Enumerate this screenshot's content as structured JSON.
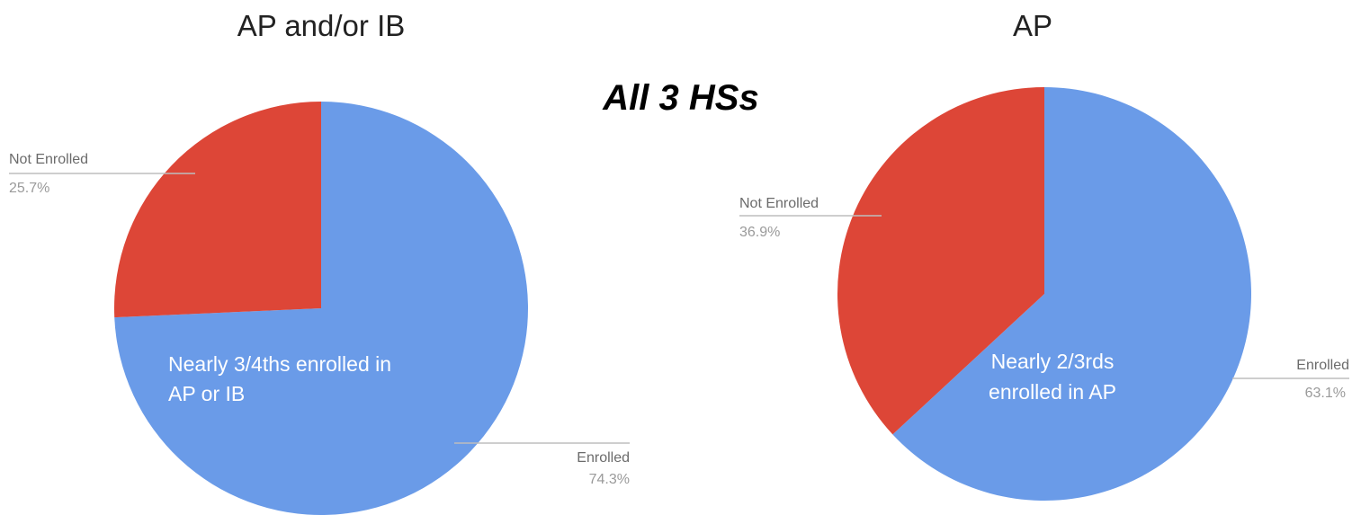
{
  "banner": "All 3 HSs",
  "colors": {
    "enrolled": "#6a9be8",
    "not_enrolled": "#dd4637"
  },
  "chart_data": [
    {
      "type": "pie",
      "title": "AP and/or IB",
      "slices": [
        {
          "label": "Enrolled",
          "value": 74.3,
          "display": "74.3%",
          "color": "#6a9be8"
        },
        {
          "label": "Not Enrolled",
          "value": 25.7,
          "display": "25.7%",
          "color": "#dd4637"
        }
      ],
      "annotation": [
        "Nearly 3/4ths enrolled in",
        "AP or IB"
      ]
    },
    {
      "type": "pie",
      "title": "AP",
      "slices": [
        {
          "label": "Enrolled",
          "value": 63.1,
          "display": "63.1%",
          "color": "#6a9be8"
        },
        {
          "label": "Not Enrolled",
          "value": 36.9,
          "display": "36.9%",
          "color": "#dd4637"
        }
      ],
      "annotation": [
        "Nearly 2/3rds",
        "enrolled in AP"
      ]
    }
  ]
}
